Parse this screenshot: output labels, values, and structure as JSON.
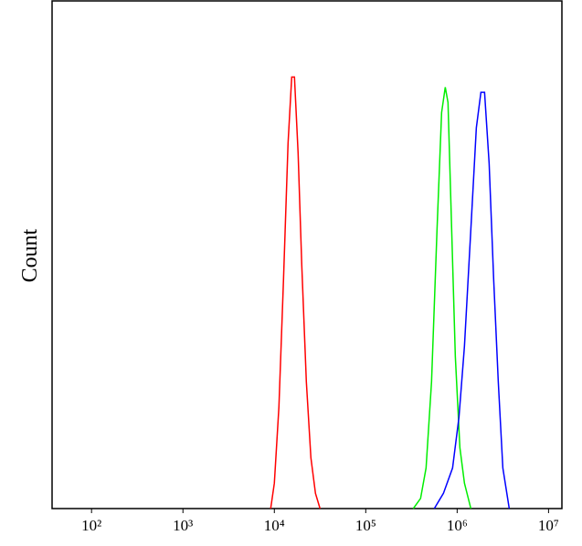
{
  "chart_data": {
    "type": "line",
    "y_label": "Count",
    "x_log": true,
    "xlim": [
      37,
      14000000
    ],
    "ylim": [
      0,
      100
    ],
    "xticks": [
      {
        "value": 100,
        "label": "10²"
      },
      {
        "value": 1000,
        "label": "10³"
      },
      {
        "value": 10000,
        "label": "10⁴"
      },
      {
        "value": 100000,
        "label": "10⁵"
      },
      {
        "value": 1000000,
        "label": "10⁶"
      },
      {
        "value": 10000000,
        "label": "10⁷"
      }
    ],
    "series": [
      {
        "color": "#ff0000",
        "x": [
          9120,
          10000,
          11220,
          12590,
          14130,
          15490,
          16600,
          18200,
          19950,
          22390,
          25120,
          28180,
          31620
        ],
        "values": [
          0,
          5,
          20,
          45,
          72,
          85,
          85,
          70,
          48,
          25,
          10,
          3,
          0
        ]
      },
      {
        "color": "#00ee00",
        "x": [
          331100,
          398100,
          457100,
          524800,
          602600,
          676100,
          741300,
          794300,
          871000,
          955000,
          1071500,
          1202300,
          1412500
        ],
        "values": [
          0,
          2,
          8,
          25,
          55,
          78,
          83,
          80,
          55,
          30,
          12,
          5,
          0
        ]
      },
      {
        "color": "#0000ff",
        "x": [
          562300,
          707900,
          891300,
          1047100,
          1202300,
          1412500,
          1621800,
          1819700,
          1995300,
          2238700,
          2511900,
          2818400,
          3162300,
          3715400
        ],
        "values": [
          0,
          3,
          8,
          18,
          32,
          55,
          75,
          82,
          82,
          68,
          45,
          25,
          8,
          0
        ]
      }
    ]
  }
}
